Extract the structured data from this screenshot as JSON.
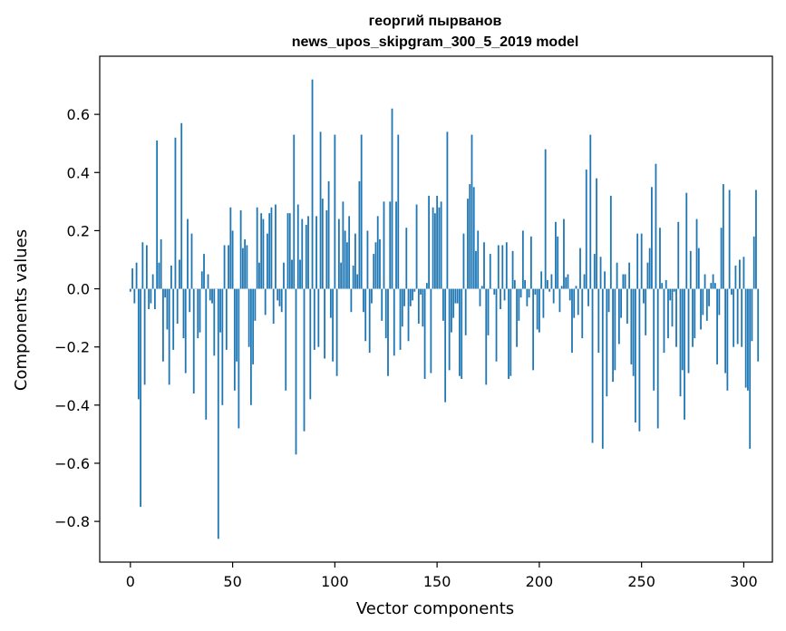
{
  "chart_data": {
    "type": "bar",
    "title": "георгий пырванов",
    "subtitle": "news_upos_skipgram_300_5_2019 model",
    "xlabel": "Vector components",
    "ylabel": "Components values",
    "xlim": [
      -15,
      314
    ],
    "ylim": [
      -0.94,
      0.8
    ],
    "x_ticks": [
      0,
      50,
      100,
      150,
      200,
      250,
      300
    ],
    "x_tick_labels": [
      "0",
      "50",
      "100",
      "150",
      "200",
      "250",
      "300"
    ],
    "y_ticks": [
      -0.8,
      -0.6,
      -0.4,
      -0.2,
      0.0,
      0.2,
      0.4,
      0.6
    ],
    "y_tick_labels": [
      "−0.8",
      "−0.6",
      "−0.4",
      "−0.2",
      "0.0",
      "0.2",
      "0.4",
      "0.6"
    ],
    "bar_color": "#1f77b4",
    "grid": false,
    "legend": "none",
    "values": [
      -0.01,
      0.07,
      -0.05,
      0.09,
      -0.38,
      -0.75,
      0.16,
      -0.33,
      0.15,
      -0.07,
      -0.05,
      0.05,
      -0.07,
      0.51,
      0.09,
      0.17,
      -0.25,
      -0.03,
      -0.14,
      -0.33,
      0.08,
      -0.21,
      0.52,
      -0.12,
      0.1,
      0.57,
      -0.17,
      -0.29,
      0.24,
      -0.08,
      0.19,
      -0.36,
      0.0,
      -0.17,
      -0.15,
      0.06,
      0.12,
      -0.45,
      0.05,
      -0.04,
      -0.05,
      -0.23,
      0.0,
      -0.86,
      -0.15,
      -0.4,
      0.15,
      -0.21,
      0.15,
      0.28,
      0.2,
      -0.35,
      -0.25,
      -0.48,
      0.27,
      0.14,
      0.17,
      0.15,
      -0.2,
      -0.4,
      -0.26,
      -0.11,
      0.28,
      0.09,
      0.26,
      0.24,
      -0.09,
      0.19,
      0.26,
      0.28,
      -0.12,
      0.29,
      -0.04,
      -0.06,
      -0.08,
      0.09,
      -0.35,
      0.26,
      0.26,
      0.1,
      0.53,
      -0.57,
      0.29,
      0.1,
      0.24,
      -0.49,
      0.22,
      0.25,
      -0.38,
      0.72,
      -0.21,
      0.25,
      -0.2,
      0.54,
      0.31,
      -0.24,
      0.27,
      0.37,
      -0.1,
      -0.25,
      0.53,
      -0.3,
      0.24,
      0.09,
      0.3,
      0.2,
      0.16,
      0.25,
      -0.08,
      0.08,
      0.19,
      0.05,
      0.37,
      0.53,
      -0.08,
      -0.18,
      0.2,
      -0.22,
      -0.05,
      0.12,
      0.16,
      0.25,
      0.17,
      -0.11,
      0.3,
      -0.17,
      -0.3,
      0.3,
      0.62,
      -0.23,
      0.3,
      0.53,
      -0.21,
      -0.13,
      -0.06,
      0.21,
      -0.18,
      -0.06,
      -0.04,
      -0.01,
      0.29,
      -0.12,
      -0.02,
      -0.13,
      -0.31,
      0.02,
      0.32,
      -0.29,
      0.28,
      0.26,
      0.32,
      0.28,
      0.3,
      -0.11,
      -0.39,
      0.54,
      -0.28,
      -0.15,
      -0.1,
      -0.05,
      -0.05,
      -0.3,
      -0.31,
      0.19,
      -0.16,
      0.31,
      0.36,
      0.53,
      0.35,
      0.13,
      0.2,
      -0.06,
      0.01,
      0.16,
      -0.33,
      -0.16,
      0.12,
      0.0,
      -0.02,
      -0.25,
      0.15,
      -0.07,
      0.15,
      -0.04,
      0.16,
      -0.31,
      -0.3,
      0.13,
      0.03,
      -0.2,
      -0.11,
      -0.03,
      0.2,
      0.03,
      -0.06,
      -0.03,
      0.18,
      -0.28,
      -0.02,
      -0.14,
      -0.15,
      0.06,
      -0.1,
      0.48,
      0.03,
      -0.01,
      0.05,
      -0.05,
      0.23,
      0.18,
      -0.08,
      0.01,
      0.24,
      0.04,
      0.05,
      -0.04,
      -0.22,
      -0.1,
      0.01,
      -0.09,
      0.14,
      -0.17,
      0.05,
      0.41,
      -0.06,
      0.53,
      -0.53,
      0.12,
      0.38,
      -0.22,
      0.11,
      -0.55,
      0.06,
      -0.37,
      -0.08,
      0.32,
      -0.32,
      -0.28,
      0.09,
      -0.19,
      -0.1,
      0.05,
      0.05,
      -0.12,
      0.09,
      -0.26,
      -0.3,
      -0.46,
      0.19,
      -0.49,
      0.19,
      -0.05,
      -0.16,
      0.09,
      0.14,
      0.35,
      -0.35,
      0.43,
      -0.48,
      0.21,
      0.02,
      -0.22,
      0.03,
      -0.17,
      -0.04,
      -0.13,
      -0.01,
      -0.2,
      0.23,
      -0.37,
      -0.28,
      -0.45,
      0.33,
      -0.29,
      0.13,
      -0.2,
      -0.17,
      0.24,
      0.14,
      -0.14,
      -0.09,
      0.05,
      -0.11,
      -0.06,
      0.02,
      0.05,
      0.02,
      -0.26,
      -0.09,
      0.21,
      0.36,
      -0.29,
      -0.35,
      0.34,
      -0.02,
      -0.2,
      0.08,
      -0.19,
      0.1,
      -0.2,
      0.11,
      -0.34,
      -0.35,
      -0.55,
      -0.18,
      0.18,
      0.34,
      -0.25
    ]
  }
}
